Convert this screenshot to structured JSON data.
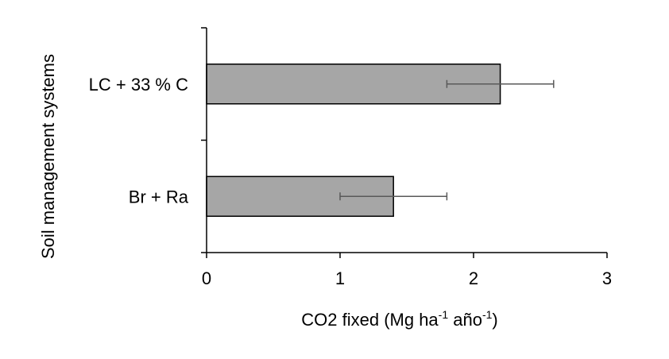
{
  "chart_data": {
    "type": "bar",
    "orientation": "horizontal",
    "categories": [
      "LC + 33 % C",
      "Br + Ra"
    ],
    "values": [
      2.2,
      1.4
    ],
    "error_low": [
      1.8,
      1.0
    ],
    "error_high": [
      2.6,
      1.8
    ],
    "xlim": [
      0,
      3
    ],
    "xticks": [
      "0",
      "1",
      "2",
      "3"
    ],
    "ylabel": "Soil management systems",
    "xlabel": {
      "part1": "CO2  fixed (Mg ha",
      "sup1": "-1",
      "part2": " año",
      "sup2": "-1",
      "part3": ")"
    },
    "grid": false,
    "legend": "none",
    "colors": {
      "bar_fill": "#a6a6a6",
      "bar_stroke": "#000000",
      "error_bar": "#595959",
      "axis": "#000000"
    }
  }
}
